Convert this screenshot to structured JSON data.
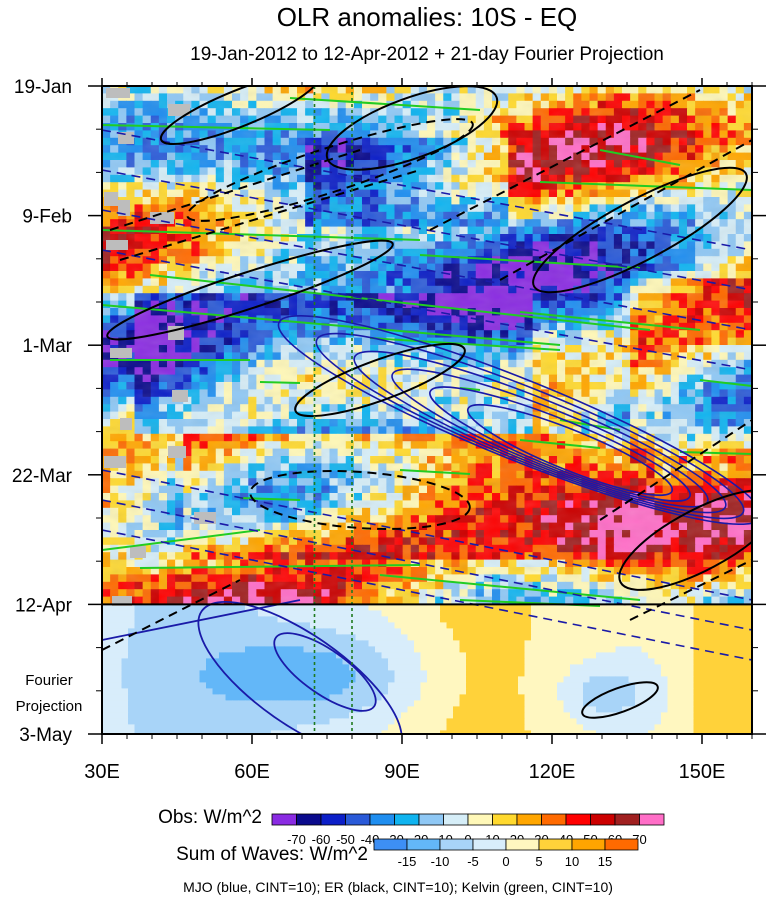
{
  "chart_data": {
    "type": "heatmap",
    "title": "OLR anomalies: 10S - EQ",
    "subtitle": "19-Jan-2012 to 12-Apr-2012 + 21-day Fourier Projection",
    "x_axis": {
      "range": [
        30,
        160
      ],
      "ticks": [
        30,
        60,
        90,
        120,
        150
      ],
      "tick_labels": [
        "30E",
        "60E",
        "90E",
        "120E",
        "150E"
      ]
    },
    "y_axis": {
      "range_days": [
        0,
        105
      ],
      "ticks_days": [
        0,
        21,
        42,
        63,
        84,
        105
      ],
      "tick_labels": [
        "19-Jan",
        "9-Feb",
        "1-Mar",
        "22-Mar",
        "12-Apr",
        "3-May"
      ],
      "direction": "down"
    },
    "projection_label": [
      "Fourier",
      "Projection"
    ],
    "projection_start_day": 84,
    "vertical_markers_lon": [
      72.5,
      80
    ],
    "obs_colorbar": {
      "label": "Obs: W/m^2",
      "levels": [
        -70,
        -60,
        -50,
        -40,
        -30,
        -20,
        -10,
        0,
        10,
        20,
        30,
        40,
        50,
        60,
        70
      ],
      "colors": [
        "#8a2be2",
        "#0a0a8c",
        "#0c1fc8",
        "#2a5ad8",
        "#1f8ef0",
        "#10b4f0",
        "#8fc8f5",
        "#d6eef8",
        "#fff8b8",
        "#ffd92e",
        "#ffa600",
        "#ff6a00",
        "#ff0000",
        "#cc0000",
        "#a02020",
        "#ff6ec7"
      ]
    },
    "waves_colorbar": {
      "label": "Sum of Waves: W/m^2",
      "levels": [
        -15,
        -10,
        -5,
        0,
        5,
        10,
        15
      ],
      "colors": [
        "#3d8ff5",
        "#63b7f8",
        "#a8d4f8",
        "#d8edfb",
        "#fff7c0",
        "#ffd23a",
        "#ffa500",
        "#ff6a00"
      ]
    },
    "contours_note": "MJO (blue, CINT=10); ER (black, CINT=10); Kelvin (green, CINT=10)",
    "series": [
      {
        "name": "MJO",
        "color": "#1a1aa8"
      },
      {
        "name": "ER",
        "color": "#000000"
      },
      {
        "name": "Kelvin",
        "color": "#22cc22"
      }
    ]
  }
}
